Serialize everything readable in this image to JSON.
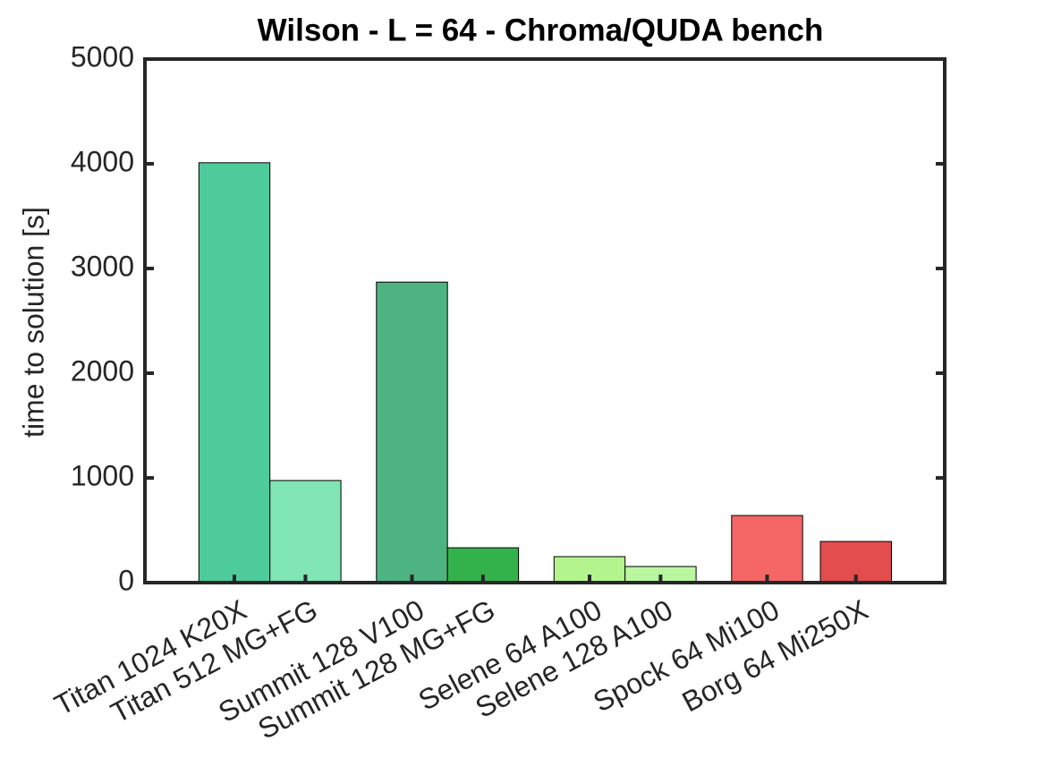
{
  "chart_data": {
    "type": "bar",
    "title": "Wilson - L = 64 - Chroma/QUDA bench",
    "y_label": "time to solution [s]",
    "categories": [
      "Titan 1024 K20X",
      "Titan 512 MG+FG",
      "Summit 128 V100",
      "Summit 128 MG+FG",
      "Selene 64 A100",
      "Selene 128 A100",
      "Spock 64 Mi100",
      "Borg 64 Mi250X"
    ],
    "values": [
      4010,
      975,
      2870,
      333,
      248,
      154,
      641,
      393
    ],
    "colors": [
      "#4ecb9a",
      "#80e6b3",
      "#4db380",
      "#33b24c",
      "#b3f58c",
      "#b8f7a0",
      "#f56666",
      "#e34d4d"
    ],
    "ylim": [
      0,
      5000
    ],
    "yticks": [
      0,
      1000,
      2000,
      3000,
      4000,
      5000
    ]
  }
}
